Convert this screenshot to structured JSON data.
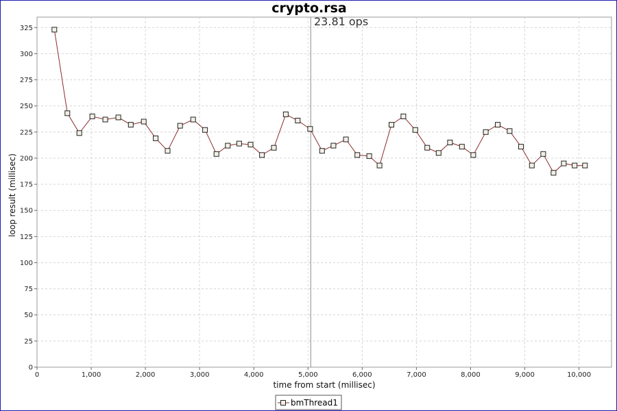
{
  "chart_data": {
    "type": "line",
    "title": "crypto.rsa",
    "annotation": "23.81 ops",
    "marker_x": 5050,
    "xlabel": "time from start (millisec)",
    "ylabel": "loop result (millisec)",
    "xlim": [
      0,
      10600
    ],
    "ylim": [
      0,
      335
    ],
    "x_ticks": [
      0,
      1000,
      2000,
      3000,
      4000,
      5000,
      6000,
      7000,
      8000,
      9000,
      10000
    ],
    "x_tick_labels": [
      "0",
      "1,000",
      "2,000",
      "3,000",
      "4,000",
      "5,000",
      "6,000",
      "7,000",
      "8,000",
      "9,000",
      "10,000"
    ],
    "y_ticks": [
      0,
      25,
      50,
      75,
      100,
      125,
      150,
      175,
      200,
      225,
      250,
      275,
      300,
      325
    ],
    "y_tick_labels": [
      "0",
      "25",
      "50",
      "75",
      "100",
      "125",
      "150",
      "175",
      "200",
      "225",
      "250",
      "275",
      "300",
      "325"
    ],
    "grid": true,
    "legend_position": "bottom-center",
    "series": [
      {
        "name": "bmThread1",
        "color": "#8b2a2a",
        "marker": "square",
        "x": [
          320,
          560,
          780,
          1020,
          1260,
          1500,
          1730,
          1970,
          2190,
          2410,
          2640,
          2880,
          3100,
          3310,
          3520,
          3730,
          3940,
          4150,
          4370,
          4590,
          4810,
          5040,
          5260,
          5470,
          5700,
          5910,
          6130,
          6320,
          6540,
          6760,
          6980,
          7200,
          7410,
          7620,
          7840,
          8050,
          8280,
          8500,
          8720,
          8930,
          9130,
          9340,
          9530,
          9720,
          9920,
          10110
        ],
        "y": [
          323,
          243,
          224,
          240,
          237,
          239,
          232,
          235,
          219,
          207,
          231,
          237,
          227,
          204,
          212,
          214,
          213,
          203,
          210,
          242,
          236,
          228,
          207,
          212,
          218,
          203,
          202,
          193,
          232,
          240,
          227,
          210,
          205,
          215,
          211,
          203,
          225,
          232,
          226,
          211,
          193,
          204,
          186,
          195,
          193,
          193
        ]
      }
    ]
  }
}
